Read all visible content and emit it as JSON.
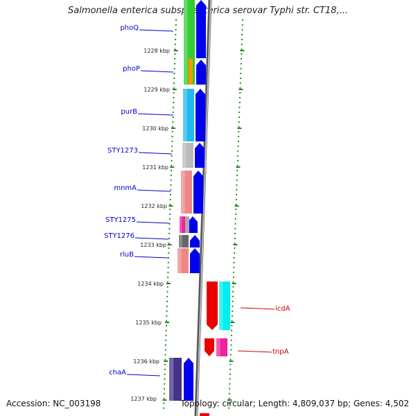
{
  "title": "Salmonella enterica subsp. enterica serovar Typhi str. CT18,...",
  "footer": {
    "accession": "Accession: NC_003198",
    "topology": "Topology: circular; Length: 4,809,037 bp; Genes: 4,502"
  },
  "colors": {
    "axis": "#888888",
    "dots": "#1a8a1a",
    "forward_label": "#0000cc",
    "reverse_label": "#cc0000",
    "forward_arrow": "#0000ee",
    "reverse_arrow": "#ee0000"
  },
  "kbp_ticks": [
    "1228 kbp",
    "1229 kbp",
    "1230 kbp",
    "1231 kbp",
    "1232 kbp",
    "1233 kbp",
    "1234 kbp",
    "1235 kbp",
    "1236 kbp",
    "1237 kbp"
  ],
  "genes": [
    {
      "name": "phoQ",
      "strand": "forward",
      "color": "#33cc33"
    },
    {
      "name": "phoP",
      "strand": "forward",
      "color": "#33cc33"
    },
    {
      "name": "purB",
      "strand": "forward",
      "color": "#22bbee"
    },
    {
      "name": "STY1273",
      "strand": "forward",
      "color": "#bbbbbb"
    },
    {
      "name": "mnmA",
      "strand": "forward",
      "color": "#ee8888"
    },
    {
      "name": "STY1275",
      "strand": "forward",
      "color": "#ee2299"
    },
    {
      "name": "STY1276",
      "strand": "forward",
      "color": "#666666"
    },
    {
      "name": "rluB",
      "strand": "forward",
      "color": "#ee8888"
    },
    {
      "name": "icdA",
      "strand": "reverse",
      "color": "#00eeee"
    },
    {
      "name": "tnpA",
      "strand": "reverse",
      "color": "#ee2299"
    },
    {
      "name": "chaA",
      "strand": "forward",
      "color": "#443388"
    }
  ]
}
